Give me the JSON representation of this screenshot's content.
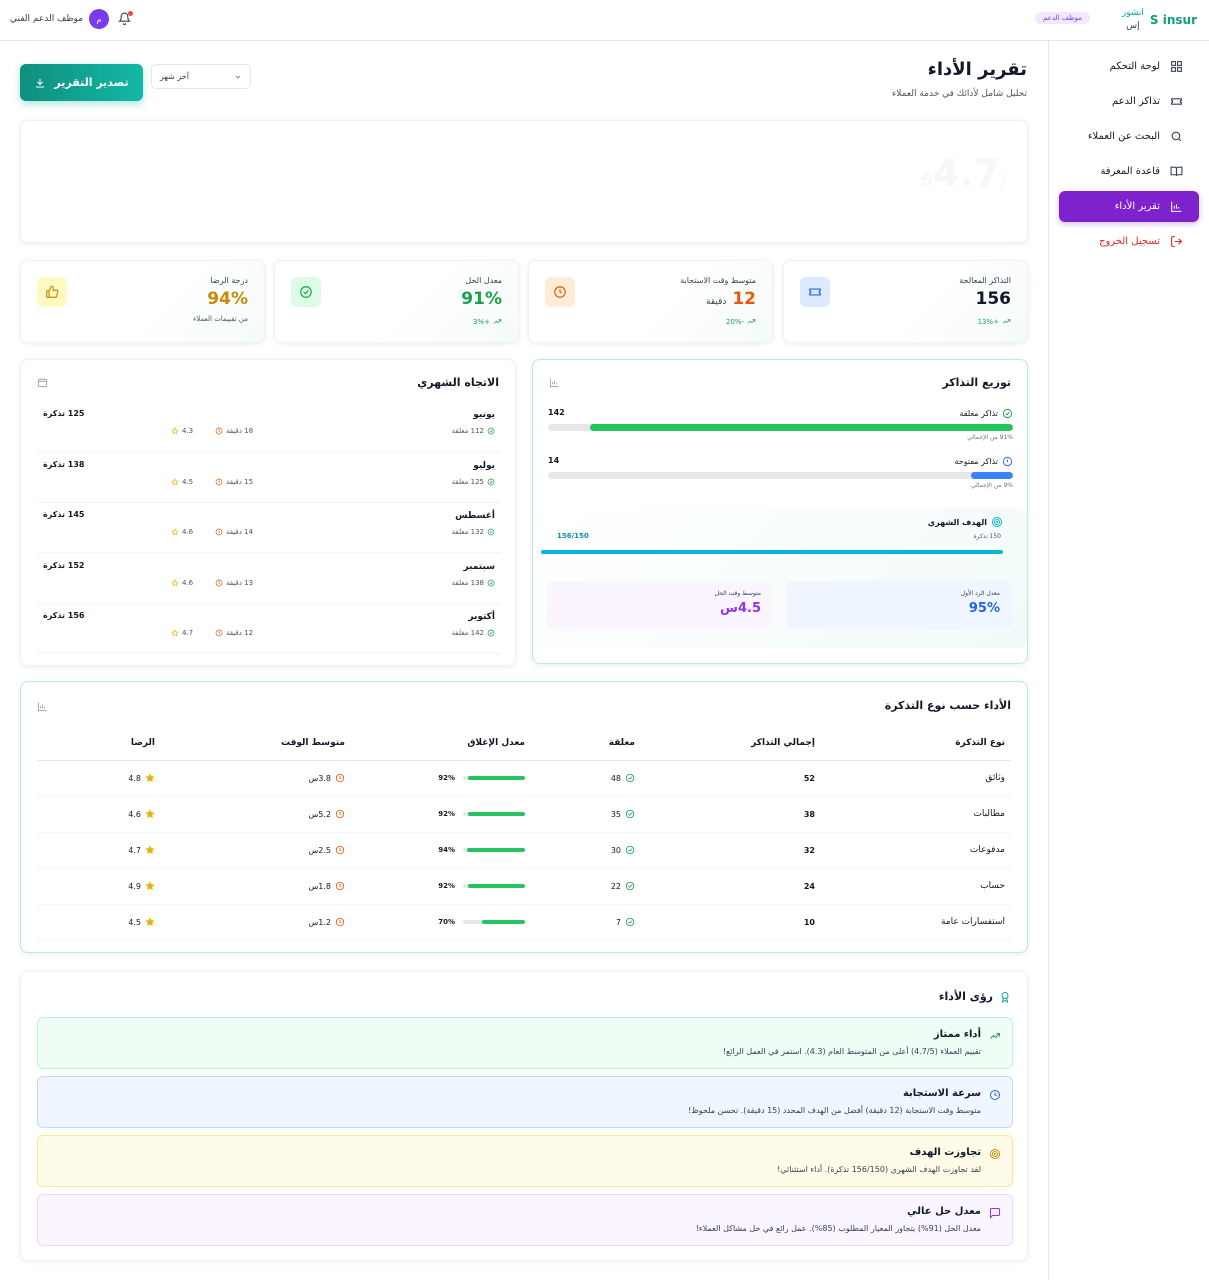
{
  "topbar": {
    "logo_en": "S insur",
    "logo_ar_1": "انشور",
    "logo_ar_2": "إس",
    "role_badge": "موظف الدعم",
    "user_name": "موظف الدعم الفني",
    "avatar": "م"
  },
  "sidebar": {
    "items": [
      {
        "label": "لوحة التحكم",
        "icon": "grid-icon"
      },
      {
        "label": "تذاكر الدعم",
        "icon": "ticket-icon"
      },
      {
        "label": "البحث عن العملاء",
        "icon": "search-icon"
      },
      {
        "label": "قاعدة المعرفة",
        "icon": "book-icon"
      },
      {
        "label": "تقرير الأداء",
        "icon": "chart-icon",
        "active": true
      },
      {
        "label": "تسجيل الخروج",
        "icon": "logout-icon"
      }
    ]
  },
  "header": {
    "title": "تقرير الأداء",
    "subtitle": "تحليل شامل لأدائك في خدمة العملاء",
    "export_label": "تصدير التقرير",
    "period_value": "آخر شهر"
  },
  "hero": {
    "score": "4.7",
    "out_of": "/5"
  },
  "stats": [
    {
      "label": "التذاكر المعالجة",
      "value": "156",
      "unit": "",
      "trend": "+13%",
      "color": "#111827",
      "icon": "ticket-icon",
      "icon_bg": "#dbeafe",
      "icon_color": "#2563eb"
    },
    {
      "label": "متوسط وقت الاستجابة",
      "value": "12",
      "unit": "دقيقة",
      "trend": "-20%",
      "color": "#ea580c",
      "icon": "clock-icon",
      "icon_bg": "#ffedd5",
      "icon_color": "#ea580c"
    },
    {
      "label": "معدل الحل",
      "value": "91%",
      "unit": "",
      "trend": "+3%",
      "color": "#16a34a",
      "icon": "check-circle-icon",
      "icon_bg": "#dcfce7",
      "icon_color": "#16a34a"
    },
    {
      "label": "درجة الرضا",
      "value": "94%",
      "unit": "",
      "sub": "من تقييمات العملاء",
      "color": "#ca8a04",
      "icon": "thumbs-up-icon",
      "icon_bg": "#fef9c3",
      "icon_color": "#ca8a04"
    }
  ],
  "distribution": {
    "title": "توزيع التذاكر",
    "closed": {
      "label": "تذاكر مغلقة",
      "count": "142",
      "share": 0.91,
      "pct_text": "91% من الإجمالي",
      "color": "#22c55e"
    },
    "open": {
      "label": "تذاكر مفتوحة",
      "count": "14",
      "share": 0.09,
      "pct_text": "9% من الإجمالي",
      "color": "#3b82f6"
    },
    "goal": {
      "title": "الهدف الشهري",
      "target_text": "150 تذكرة",
      "progress_text": "156/150",
      "share": 1.0,
      "color": "#06b6d4"
    },
    "first_response": {
      "label": "معدل الرد الأول",
      "value": "95%"
    },
    "avg_resolution": {
      "label": "متوسط وقت الحل",
      "value": "4.5س"
    }
  },
  "monthly": {
    "title": "الاتجاه الشهري",
    "rows": [
      {
        "month": "يونيو",
        "tickets": "125 تذكرة",
        "closed": "112 مغلقة",
        "time": "18 دقيقة",
        "rating": "4.3"
      },
      {
        "month": "يوليو",
        "tickets": "138 تذكرة",
        "closed": "125 مغلقة",
        "time": "15 دقيقة",
        "rating": "4.5"
      },
      {
        "month": "أغسطس",
        "tickets": "145 تذكرة",
        "closed": "132 مغلقة",
        "time": "14 دقيقة",
        "rating": "4.6"
      },
      {
        "month": "سبتمبر",
        "tickets": "152 تذكرة",
        "closed": "138 مغلقة",
        "time": "13 دقيقة",
        "rating": "4.6"
      },
      {
        "month": "أكتوبر",
        "tickets": "156 تذكرة",
        "closed": "142 مغلقة",
        "time": "12 دقيقة",
        "rating": "4.7"
      }
    ]
  },
  "by_type": {
    "title": "الأداء حسب نوع التذكرة",
    "headers": [
      "نوع التذكرة",
      "إجمالي التذاكر",
      "مغلقة",
      "معدل الإغلاق",
      "متوسط الوقت",
      "الرضا"
    ],
    "rows": [
      {
        "type": "وثائق",
        "total": "52",
        "closed": "48",
        "rate": "92%",
        "rate_value": 0.92,
        "time": "3.8س",
        "rating": "4.8"
      },
      {
        "type": "مطالبات",
        "total": "38",
        "closed": "35",
        "rate": "92%",
        "rate_value": 0.92,
        "time": "5.2س",
        "rating": "4.6"
      },
      {
        "type": "مدفوعات",
        "total": "32",
        "closed": "30",
        "rate": "94%",
        "rate_value": 0.94,
        "time": "2.5س",
        "rating": "4.7"
      },
      {
        "type": "حساب",
        "total": "24",
        "closed": "22",
        "rate": "92%",
        "rate_value": 0.92,
        "time": "1.8س",
        "rating": "4.9"
      },
      {
        "type": "استفسارات عامة",
        "total": "10",
        "closed": "7",
        "rate": "70%",
        "rate_value": 0.7,
        "time": "1.2س",
        "rating": "4.5"
      }
    ]
  },
  "insights": {
    "title": "رؤى الأداء",
    "items": [
      {
        "title": "أداء ممتاز",
        "text": "تقييم العملاء (4.7/5) أعلى من المتوسط العام (4.3). استمر في العمل الرائع!",
        "bg": "#f0fdf4",
        "border": "#bbf7d0",
        "title_color": "#111827",
        "icon": "trend-up-icon",
        "icon_color": "#16a34a"
      },
      {
        "title": "سرعة الاستجابة",
        "text": "متوسط وقت الاستجابة (12 دقيقة) أفضل من الهدف المحدد (15 دقيقة). تحسن ملحوظ!",
        "bg": "#eff6ff",
        "border": "#bfdbfe",
        "title_color": "#111827",
        "icon": "clock-icon",
        "icon_color": "#2563eb"
      },
      {
        "title": "تجاوزت الهدف",
        "text": "لقد تجاوزت الهدف الشهري (156/150 تذكرة). أداء استثنائي!",
        "bg": "#fefce8",
        "border": "#fde68a",
        "title_color": "#111827",
        "icon": "target-icon",
        "icon_color": "#ca8a04"
      },
      {
        "title": "معدل حل عالي",
        "text": "معدل الحل (91%) يتجاوز المعيار المطلوب (85%). عمل رائع في حل مشاكل العملاء!",
        "bg": "#faf5ff",
        "border": "#e9d5ff",
        "title_color": "#111827",
        "icon": "message-icon",
        "icon_color": "#9333ea"
      }
    ]
  }
}
